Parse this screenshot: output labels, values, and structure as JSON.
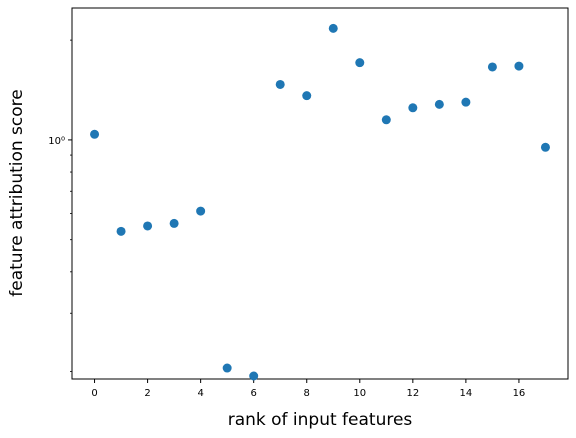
{
  "chart_data": {
    "type": "scatter",
    "xlabel": "rank of input features",
    "ylabel": "feature attribution score",
    "xlim": [
      -0.85,
      17.85
    ],
    "ylim": [
      0.19,
      2.5
    ],
    "yscale": "log",
    "grid": false,
    "x": [
      0,
      1,
      2,
      3,
      4,
      5,
      6,
      7,
      8,
      9,
      10,
      11,
      12,
      13,
      14,
      15,
      16,
      17
    ],
    "y": [
      1.04,
      0.53,
      0.55,
      0.56,
      0.61,
      0.205,
      0.194,
      1.47,
      1.36,
      2.17,
      1.71,
      1.15,
      1.25,
      1.28,
      1.3,
      1.66,
      1.67,
      0.95
    ],
    "xticks": [
      0,
      2,
      4,
      6,
      8,
      10,
      12,
      14,
      16
    ],
    "xtick_labels": [
      "0",
      "2",
      "4",
      "6",
      "8",
      "10",
      "12",
      "14",
      "16"
    ],
    "yticks_major": [
      1
    ],
    "ytick_major_labels": [
      "10⁰"
    ],
    "yticks_minor": [
      0.2,
      0.3,
      0.4,
      0.5,
      0.6,
      0.7,
      0.8,
      0.9,
      2
    ],
    "marker_color": "#1f77b4"
  }
}
